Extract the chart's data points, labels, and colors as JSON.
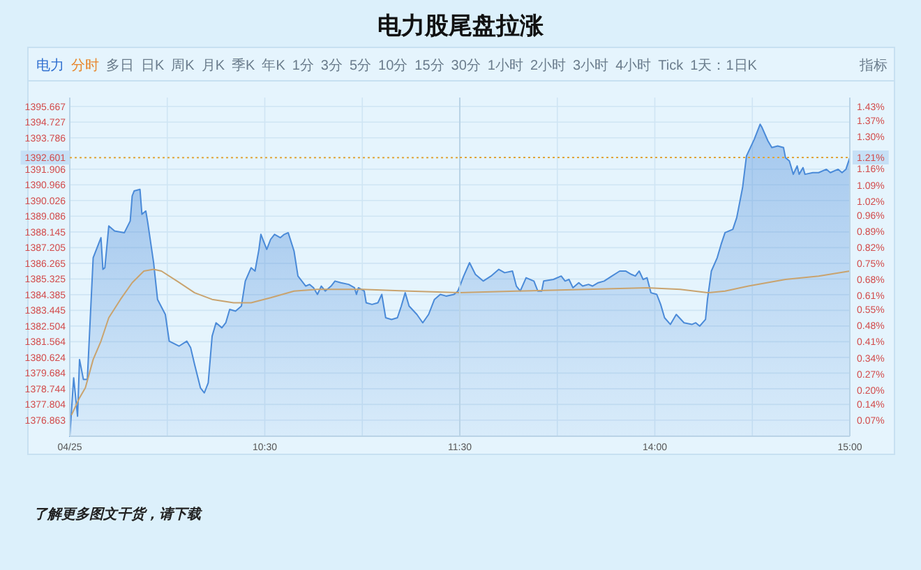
{
  "chart_data": [
    {
      "type": "area",
      "title": "电力股尾盘拉涨",
      "annotations": [
        "了解更多图文干货，请下载",
        "电力",
        "分时",
        "多日",
        "日K",
        "周K",
        "月K",
        "季K",
        "年K",
        "1分",
        "3分",
        "5分",
        "10分",
        "15分",
        "30分",
        "1小时",
        "2小时",
        "3小时",
        "4小时",
        "Tick",
        "1天：1日K",
        "指标"
      ],
      "xlim": [
        9.5,
        11.5
      ],
      "xticks": [
        {
          "value": 9.5,
          "label": "04/25"
        },
        {
          "value": 10,
          "label": null
        },
        {
          "value": 10.5,
          "label": "10:30"
        },
        {
          "value": 11,
          "label": null
        },
        {
          "value": 11.5,
          "label": "11:30"
        }
      ],
      "ylim": [
        1375.9,
        1396.2
      ],
      "yticks": [
        1376.863,
        1377.804,
        1378.744,
        1379.684,
        1380.624,
        1381.564,
        1382.504,
        1383.445,
        1384.385,
        1385.325,
        1386.265,
        1387.205,
        1388.145,
        1389.086,
        1390.026,
        1390.966,
        1391.906,
        1393.786,
        1394.727,
        1395.667
      ],
      "grid": true,
      "ref_lines": [
        {
          "axis": "y",
          "value": 1392.601,
          "label": "1392.601",
          "color": "#e0a53a",
          "line_style": "dotted"
        }
      ],
      "series": [
        {
          "color": "#4a8ad8",
          "x": [
            9.5,
            9.52,
            9.54,
            9.55,
            9.57,
            9.59,
            9.62,
            9.66,
            9.67,
            9.68,
            9.7,
            9.73,
            9.78,
            9.81,
            9.82,
            9.83,
            9.86,
            9.87,
            9.89,
            9.9,
            9.93,
            9.95,
            9.99,
            10.01,
            10.06,
            10.1,
            10.12,
            10.14,
            10.17,
            10.19,
            10.21,
            10.23,
            10.25,
            10.28,
            10.3,
            10.32,
            10.35,
            10.38,
            10.4,
            10.43,
            10.45,
            10.47,
            10.48,
            10.51,
            10.53,
            10.55,
            10.58,
            10.6,
            10.62,
            10.65,
            10.67,
            10.71,
            10.73,
            10.75,
            10.77,
            10.79,
            10.81,
            10.84,
            10.86,
            10.89,
            10.93,
            10.96,
            10.97,
            10.98,
            11.01,
            11.02,
            11.05,
            11.08,
            11.1,
            11.12,
            11.15,
            11.18,
            11.2,
            11.22,
            11.24,
            11.28,
            11.31,
            11.34,
            11.37,
            11.4,
            11.43,
            11.47,
            11.49,
            11.5
          ],
          "values": [
            1375.9,
            1379.4,
            1377.1,
            1380.5,
            1379.3,
            1379.3,
            1386.6,
            1387.8,
            1385.9,
            1386.0,
            1388.5,
            1388.2,
            1388.1,
            1388.8,
            1390.3,
            1390.6,
            1390.7,
            1389.2,
            1389.4,
            1388.7,
            1386.3,
            1384.1,
            1383.2,
            1381.6,
            1381.3,
            1381.6,
            1381.2,
            1380.2,
            1378.8,
            1378.5,
            1379.1,
            1381.9,
            1382.7,
            1382.4,
            1382.7,
            1383.5,
            1383.4,
            1383.7,
            1385.2,
            1386.0,
            1385.8,
            1387.1,
            1388.0,
            1387.1,
            1387.7,
            1388.0,
            1387.8,
            1388.0,
            1388.1,
            1387.0,
            1385.5,
            1384.9,
            1385.0,
            1384.8,
            1384.4,
            1384.9,
            1384.6,
            1384.9,
            1385.2,
            1385.1,
            1385.0,
            1384.8,
            1384.4,
            1384.8,
            1384.6,
            1383.9,
            1383.8,
            1383.9,
            1384.4,
            1383.0,
            1382.9,
            1383.0,
            1383.7,
            1384.5,
            1383.7,
            1383.2,
            1382.7,
            1383.2,
            1384.1,
            1384.4,
            1384.3,
            1384.4,
            1384.6,
            1384.9
          ]
        },
        {
          "type": "line",
          "color": "#c9a36e",
          "x": [
            9.51,
            9.55,
            9.58,
            9.62,
            9.66,
            9.7,
            9.76,
            9.82,
            9.88,
            9.93,
            9.97,
            10.05,
            10.14,
            10.23,
            10.34,
            10.43,
            10.53,
            10.65,
            10.77,
            11.0,
            11.24,
            11.5
          ],
          "values": [
            1377.2,
            1378.2,
            1378.8,
            1380.5,
            1381.6,
            1383.0,
            1384.1,
            1385.1,
            1385.8,
            1385.9,
            1385.8,
            1385.2,
            1384.5,
            1384.1,
            1383.9,
            1383.9,
            1384.2,
            1384.6,
            1384.7,
            1384.7,
            1384.6,
            1384.5
          ]
        }
      ]
    },
    {
      "type": "area",
      "xlim": [
        13,
        15
      ],
      "xticks": [
        {
          "value": 13,
          "label": null
        },
        {
          "value": 13.5,
          "label": null
        },
        {
          "value": 14,
          "label": "14:00"
        },
        {
          "value": 14.5,
          "label": null
        },
        {
          "value": 15,
          "label": "15:00"
        }
      ],
      "ylim": [
        1375.9,
        1396.2
      ],
      "yticks": [
        1376.863,
        1377.804,
        1378.744,
        1379.684,
        1380.624,
        1381.564,
        1382.504,
        1383.445,
        1384.385,
        1385.325,
        1386.265,
        1387.205,
        1388.145,
        1389.086,
        1390.026,
        1390.966,
        1391.906,
        1393.786,
        1394.727,
        1395.667
      ],
      "tick_labels": "x",
      "y2lim": [
        0,
        1.47
      ],
      "y2ticks": [
        {
          "value": 0.07,
          "label": "0.07%"
        },
        {
          "value": 0.14,
          "label": "0.14%"
        },
        {
          "value": 0.2,
          "label": "0.20%"
        },
        {
          "value": 0.27,
          "label": "0.27%"
        },
        {
          "value": 0.34,
          "label": "0.34%"
        },
        {
          "value": 0.41,
          "label": "0.41%"
        },
        {
          "value": 0.48,
          "label": "0.48%"
        },
        {
          "value": 0.55,
          "label": "0.55%"
        },
        {
          "value": 0.61,
          "label": "0.61%"
        },
        {
          "value": 0.68,
          "label": "0.68%"
        },
        {
          "value": 0.75,
          "label": "0.75%"
        },
        {
          "value": 0.82,
          "label": "0.82%"
        },
        {
          "value": 0.89,
          "label": "0.89%"
        },
        {
          "value": 0.96,
          "label": "0.96%"
        },
        {
          "value": 1.02,
          "label": "1.02%"
        },
        {
          "value": 1.09,
          "label": "1.09%"
        },
        {
          "value": 1.16,
          "label": "1.16%"
        },
        {
          "value": 1.3,
          "label": "1.30%"
        },
        {
          "value": 1.37,
          "label": "1.37%"
        },
        {
          "value": 1.43,
          "label": "1.43%"
        }
      ],
      "grid": true,
      "ref_lines": [
        {
          "axis": "y2",
          "value": 1.21,
          "label": "1.21%",
          "color": "#e0a53a",
          "line_style": "dotted"
        }
      ],
      "series": [
        {
          "color": "#4a8ad8",
          "x": [
            13.0,
            13.02,
            13.05,
            13.08,
            13.12,
            13.16,
            13.2,
            13.23,
            13.27,
            13.29,
            13.31,
            13.34,
            13.38,
            13.4,
            13.42,
            13.43,
            13.48,
            13.52,
            13.54,
            13.56,
            13.58,
            13.61,
            13.63,
            13.66,
            13.68,
            13.71,
            13.74,
            13.78,
            13.82,
            13.85,
            13.88,
            13.9,
            13.92,
            13.94,
            13.96,
            13.98,
            14.01,
            14.03,
            14.05,
            14.08,
            14.11,
            14.15,
            14.19,
            14.21,
            14.23,
            14.26,
            14.27,
            14.29,
            14.32,
            14.34,
            14.36,
            14.4,
            14.42,
            14.45,
            14.47,
            14.51,
            14.54,
            14.55,
            14.58,
            14.6,
            14.63,
            14.66,
            14.67,
            14.69,
            14.71,
            14.73,
            14.74,
            14.76,
            14.77,
            14.81,
            14.84,
            14.88,
            14.9,
            14.94,
            14.96,
            14.98,
            15.0
          ],
          "values": [
            1384.9,
            1385.5,
            1386.3,
            1385.6,
            1385.2,
            1385.5,
            1385.9,
            1385.7,
            1385.8,
            1384.9,
            1384.6,
            1385.4,
            1385.2,
            1384.6,
            1384.6,
            1385.2,
            1385.3,
            1385.5,
            1385.2,
            1385.3,
            1384.8,
            1385.1,
            1384.9,
            1385.0,
            1384.9,
            1385.1,
            1385.2,
            1385.5,
            1385.8,
            1385.8,
            1385.6,
            1385.5,
            1385.8,
            1385.3,
            1385.4,
            1384.5,
            1384.4,
            1383.8,
            1383.0,
            1382.6,
            1383.2,
            1382.7,
            1382.6,
            1382.7,
            1382.5,
            1382.9,
            1384.1,
            1385.8,
            1386.6,
            1387.4,
            1388.1,
            1388.3,
            1389.0,
            1390.8,
            1392.7,
            1393.7,
            1394.6,
            1394.4,
            1393.6,
            1393.2,
            1393.3,
            1393.2,
            1392.6,
            1392.4,
            1391.6,
            1392.1,
            1391.6,
            1392.0,
            1391.6,
            1391.7,
            1391.7,
            1391.9,
            1391.7,
            1391.9,
            1391.7,
            1391.9,
            1392.6
          ]
        },
        {
          "type": "line",
          "color": "#c9a36e",
          "x": [
            13.0,
            13.29,
            13.65,
            13.96,
            14.13,
            14.27,
            14.36,
            14.48,
            14.67,
            14.84,
            15.0
          ],
          "values": [
            1384.5,
            1384.6,
            1384.7,
            1384.8,
            1384.7,
            1384.5,
            1384.6,
            1384.9,
            1385.3,
            1385.5,
            1385.8
          ]
        }
      ]
    }
  ]
}
